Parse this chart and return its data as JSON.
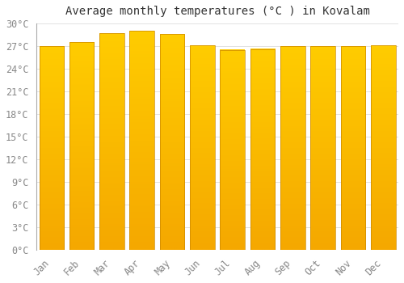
{
  "title": "Average monthly temperatures (°C ) in Kovalam",
  "months": [
    "Jan",
    "Feb",
    "Mar",
    "Apr",
    "May",
    "Jun",
    "Jul",
    "Aug",
    "Sep",
    "Oct",
    "Nov",
    "Dec"
  ],
  "values": [
    27.0,
    27.5,
    28.7,
    29.0,
    28.6,
    27.1,
    26.5,
    26.6,
    27.0,
    27.0,
    27.0,
    27.1
  ],
  "ylim": [
    0,
    30
  ],
  "yticks": [
    0,
    3,
    6,
    9,
    12,
    15,
    18,
    21,
    24,
    27,
    30
  ],
  "bar_color_left": "#F5A800",
  "bar_color_center": "#FFD040",
  "bar_color_right": "#F5A800",
  "bar_edge_color": "#CC8800",
  "background_color": "#FFFFFF",
  "grid_color": "#DDDDDD",
  "title_fontsize": 10,
  "tick_fontsize": 8.5,
  "bar_width": 0.82
}
